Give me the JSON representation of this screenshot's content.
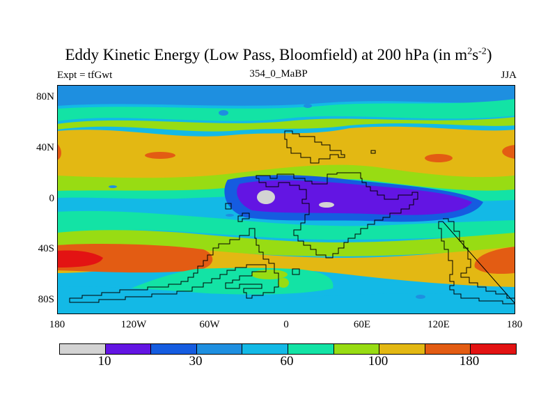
{
  "title_main": "Eddy Kinetic Energy (Low Pass, Bloomfield) at 200 hPa (in m",
  "title_sup1": "2",
  "title_mid": "s",
  "title_sup2": "-2",
  "title_end": ")",
  "subtitle_left": "Expt = tfGwt",
  "subtitle_center": "354_0_MaBP",
  "subtitle_right": "JJA",
  "lat_labels": [
    "80N",
    "40N",
    "0",
    "40S",
    "80S"
  ],
  "lon_labels": [
    "180",
    "120W",
    "60W",
    "0",
    "60E",
    "120E",
    "180"
  ],
  "colorbar": {
    "colors": [
      "#d3d3d3",
      "#6315e3",
      "#155ce0",
      "#1e8fe0",
      "#13b9e6",
      "#13e3a5",
      "#98dc13",
      "#e3b813",
      "#e35c13",
      "#e31313"
    ],
    "labels": [
      "10",
      "30",
      "60",
      "100",
      "180"
    ]
  },
  "palette": {
    "gray": "#d3d3d3",
    "violet": "#6315e3",
    "blue": "#155ce0",
    "mid_blue": "#1e8fe0",
    "cyan": "#13b9e6",
    "teal": "#13e3a5",
    "lime": "#98dc13",
    "yellow": "#e3b813",
    "orange": "#e35c13",
    "red": "#e31313"
  }
}
